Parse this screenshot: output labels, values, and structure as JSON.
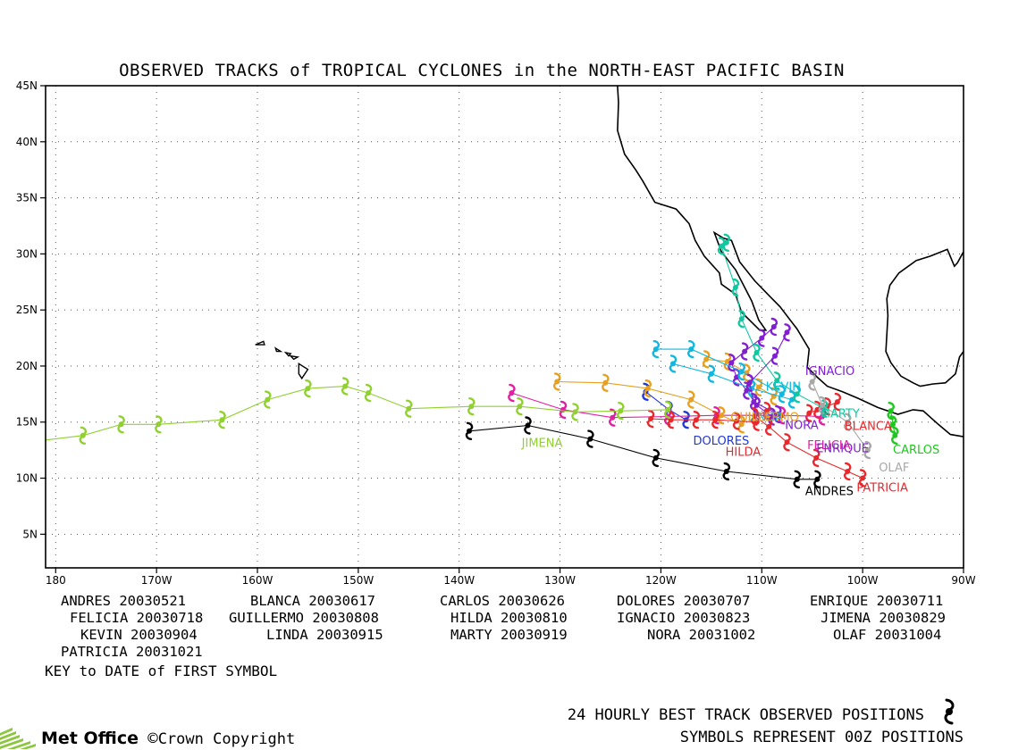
{
  "title": "OBSERVED TRACKS of TROPICAL CYCLONES in the NORTH-EAST PACIFIC BASIN",
  "axes": {
    "lon_ticks": [
      "180",
      "170W",
      "160W",
      "150W",
      "140W",
      "130W",
      "120W",
      "110W",
      "100W",
      "90W"
    ],
    "lat_ticks": [
      "5N",
      "10N",
      "15N",
      "20N",
      "25N",
      "30N",
      "35N",
      "40N",
      "45N"
    ],
    "lon_range": [
      -181,
      -90
    ],
    "lat_range": [
      2,
      45
    ],
    "grid": "dotted"
  },
  "storms": [
    {
      "name": "ANDRES",
      "date": "20030521",
      "color": "#000000",
      "track": [
        [
          -139,
          14.2
        ],
        [
          -133.2,
          14.7
        ],
        [
          -127,
          13.5
        ],
        [
          -120.5,
          11.8
        ],
        [
          -113.5,
          10.6
        ],
        [
          -106.5,
          9.9
        ],
        [
          -104.5,
          9.9
        ]
      ]
    },
    {
      "name": "BLANCA",
      "date": "20030617",
      "color": "#e8282c",
      "track": [
        [
          -102.5,
          16.8
        ],
        [
          -103.5,
          16.4
        ],
        [
          -104.5,
          16.1
        ],
        [
          -105.3,
          15.8
        ]
      ]
    },
    {
      "name": "CARLOS",
      "date": "20030626",
      "color": "#1cc81c",
      "track": [
        [
          -97.2,
          16.0
        ],
        [
          -97.0,
          14.8
        ],
        [
          -96.8,
          13.8
        ]
      ]
    },
    {
      "name": "DOLORES",
      "date": "20030707",
      "color": "#2038d8",
      "track": [
        [
          -121.5,
          17.7
        ],
        [
          -119.2,
          16.1
        ],
        [
          -117.5,
          15.2
        ]
      ]
    },
    {
      "name": "ENRIQUE",
      "date": "20030711",
      "color": "#e8a020",
      "track": [
        [
          -115.5,
          20.6
        ],
        [
          -113.4,
          20.4
        ],
        [
          -111.5,
          19.4
        ],
        [
          -110.3,
          18.1
        ],
        [
          -108.8,
          17.3
        ]
      ]
    },
    {
      "name": "FELICIA",
      "date": "20030718",
      "color": "#e020a0",
      "track": [
        [
          -134.8,
          17.6
        ],
        [
          -129.7,
          16.1
        ],
        [
          -124.8,
          15.4
        ],
        [
          -119.3,
          15.5
        ],
        [
          -114.5,
          15.6
        ],
        [
          -108,
          15.6
        ],
        [
          -104,
          15.5
        ]
      ]
    },
    {
      "name": "GUILLERMO",
      "date": "20030808",
      "color": "#e8a020",
      "track": [
        [
          -130.3,
          18.6
        ],
        [
          -125.5,
          18.5
        ],
        [
          -121.3,
          18.0
        ],
        [
          -117.0,
          17.0
        ],
        [
          -114.0,
          15.6
        ],
        [
          -112,
          14.8
        ]
      ]
    },
    {
      "name": "HILDA",
      "date": "20030810",
      "color": "#e8282c",
      "track": [
        [
          -110.5,
          15.0
        ],
        [
          -112.5,
          15.1
        ],
        [
          -114.6,
          15.2
        ],
        [
          -116.5,
          15.2
        ],
        [
          -119.0,
          15.2
        ],
        [
          -121,
          15.3
        ]
      ]
    },
    {
      "name": "IGNACIO",
      "date": "20030823",
      "color": "#8020d0",
      "track": [
        [
          -108.8,
          23.5
        ],
        [
          -110.0,
          22.5
        ],
        [
          -111.7,
          21.3
        ],
        [
          -113.0,
          20.3
        ],
        [
          -112.5,
          19.0
        ],
        [
          -111.5,
          17.8
        ],
        [
          -110.5,
          16.5
        ],
        [
          -109.0,
          15.5
        ]
      ]
    },
    {
      "name": "JIMENA",
      "date": "20030829",
      "color": "#90d030",
      "track": [
        [
          -119.3,
          16.1
        ],
        [
          -124.0,
          16.0
        ],
        [
          -128.5,
          15.9
        ],
        [
          -134.0,
          16.4
        ],
        [
          -138.8,
          16.4
        ],
        [
          -145.0,
          16.2
        ],
        [
          -149,
          17.6
        ],
        [
          -151.3,
          18.2
        ],
        [
          -155.0,
          18.0
        ],
        [
          -159.0,
          17.0
        ],
        [
          -163.5,
          15.2
        ],
        [
          -169.8,
          14.8
        ],
        [
          -173.5,
          14.8
        ],
        [
          -177.3,
          13.8
        ],
        [
          -181,
          13.4
        ]
      ]
    },
    {
      "name": "KEVIN",
      "date": "20030904",
      "color": "#10b8e0",
      "track": [
        [
          -108.0,
          17.5
        ],
        [
          -112.0,
          19.5
        ],
        [
          -117.0,
          21.5
        ],
        [
          -120.5,
          21.5
        ]
      ]
    },
    {
      "name": "LINDA",
      "date": "20030915",
      "color": "#10b8e0",
      "track": [
        [
          -107.0,
          17.0
        ],
        [
          -111.0,
          18.0
        ],
        [
          -115.0,
          19.3
        ],
        [
          -118.8,
          20.2
        ]
      ]
    },
    {
      "name": "MARTY",
      "date": "20030919",
      "color": "#10c8a0",
      "track": [
        [
          -103.8,
          16.2
        ],
        [
          -106.5,
          17.5
        ],
        [
          -108.5,
          18.7
        ],
        [
          -110.5,
          21.2
        ],
        [
          -112.0,
          24.2
        ],
        [
          -112.6,
          27.0
        ],
        [
          -114.0,
          30.7
        ],
        [
          -113.5,
          31.0
        ]
      ]
    },
    {
      "name": "NORA",
      "date": "20031002",
      "color": "#8020d0",
      "track": [
        [
          -108.4,
          15.7
        ],
        [
          -110.8,
          16.8
        ],
        [
          -111.2,
          18.5
        ],
        [
          -108.7,
          20.9
        ],
        [
          -107.5,
          23.0
        ]
      ]
    },
    {
      "name": "OLAF",
      "date": "20031004",
      "color": "#a8a8a8",
      "track": [
        [
          -105.0,
          18.6
        ],
        [
          -104.0,
          16.5
        ],
        [
          -101.5,
          15.0
        ],
        [
          -99.5,
          12.5
        ]
      ]
    },
    {
      "name": "PATRICIA",
      "date": "20031021",
      "color": "#e8282c",
      "track": [
        [
          -109.5,
          16.0
        ],
        [
          -110.7,
          15.5
        ],
        [
          -109.3,
          14.6
        ],
        [
          -107.5,
          13.2
        ],
        [
          -104.6,
          11.8
        ],
        [
          -101.5,
          10.6
        ],
        [
          -100,
          10.0
        ]
      ]
    }
  ],
  "storm_labels": [
    {
      "text": "ANDRES",
      "lon": -105.7,
      "lat": 8.5,
      "color": "#000000"
    },
    {
      "text": "PATRICIA",
      "lon": -100.6,
      "lat": 8.8,
      "color": "#e8282c"
    },
    {
      "text": "OLAF",
      "lon": -98.4,
      "lat": 10.6,
      "color": "#a8a8a8"
    },
    {
      "text": "CARLOS",
      "lon": -97,
      "lat": 12.2,
      "color": "#1cc81c"
    },
    {
      "text": "BLANCA",
      "lon": -101.8,
      "lat": 14.3,
      "color": "#e8282c"
    },
    {
      "text": "IGNACIO",
      "lon": -105.7,
      "lat": 19.2,
      "color": "#8020d0"
    },
    {
      "text": "KEVIN",
      "lon": -109.6,
      "lat": 17.8,
      "color": "#10b8e0"
    },
    {
      "text": "NORA",
      "lon": -107.7,
      "lat": 14.4,
      "color": "#8020d0"
    },
    {
      "text": "FELICIA",
      "lon": -105.5,
      "lat": 12.6,
      "color": "#e020a0"
    },
    {
      "text": "ENRIQUE",
      "lon": -104.6,
      "lat": 12.3,
      "color": "#8020d0"
    },
    {
      "text": "MARTY",
      "lon": -104.2,
      "lat": 15.4,
      "color": "#10c8a0"
    },
    {
      "text": "LINDA",
      "lon": -111.4,
      "lat": 15.1,
      "color": "#10b8e0"
    },
    {
      "text": "GUILLERMO",
      "lon": -113.1,
      "lat": 15.1,
      "color": "#e8a020"
    },
    {
      "text": "DOLORES",
      "lon": -116.8,
      "lat": 13.0,
      "color": "#2038d8"
    },
    {
      "text": "HILDA",
      "lon": -113.6,
      "lat": 12.0,
      "color": "#e8282c"
    },
    {
      "text": "JIMENA",
      "lon": -133.8,
      "lat": 12.8,
      "color": "#90d030"
    }
  ],
  "key_caption": "KEY to DATE of FIRST SYMBOL",
  "footer": {
    "line1": "24 HOURLY BEST TRACK OBSERVED POSITIONS",
    "line2": "SYMBOLS REPRESENT 00Z POSITIONS",
    "logo": "Met Office",
    "copyright": "Crown Copyright"
  },
  "coastlines": {
    "north_america": [
      [
        -124.5,
        48
      ],
      [
        -124.2,
        43.5
      ],
      [
        -124.3,
        41
      ],
      [
        -123.6,
        38.9
      ],
      [
        -122.5,
        37.5
      ],
      [
        -121.8,
        36.5
      ],
      [
        -120.6,
        34.6
      ],
      [
        -118.5,
        34
      ],
      [
        -117.2,
        32.7
      ],
      [
        -116.6,
        31.2
      ],
      [
        -115.7,
        29.8
      ],
      [
        -114.2,
        28.3
      ],
      [
        -114.0,
        27.3
      ],
      [
        -112.6,
        26.4
      ],
      [
        -112.0,
        24.8
      ],
      [
        -110.2,
        23.2
      ],
      [
        -109.6,
        23.2
      ],
      [
        -110.3,
        24.1
      ],
      [
        -111.0,
        25.8
      ],
      [
        -112.6,
        28.6
      ],
      [
        -114.0,
        30.2
      ],
      [
        -114.7,
        31.9
      ],
      [
        -113.8,
        31.4
      ],
      [
        -113.0,
        31.2
      ],
      [
        -112.2,
        29.3
      ],
      [
        -110.7,
        27.6
      ],
      [
        -109.3,
        26.3
      ],
      [
        -108.2,
        25.3
      ],
      [
        -106.5,
        23.3
      ],
      [
        -105.3,
        21.5
      ],
      [
        -105.5,
        19.9
      ],
      [
        -104.5,
        19.0
      ],
      [
        -103.5,
        18.2
      ],
      [
        -102.0,
        17.7
      ],
      [
        -100.4,
        17.1
      ],
      [
        -98.5,
        16.3
      ],
      [
        -96.5,
        15.7
      ],
      [
        -95.0,
        16.1
      ],
      [
        -94.0,
        16.0
      ],
      [
        -92.5,
        14.8
      ],
      [
        -91.3,
        13.9
      ],
      [
        -90,
        13.7
      ]
    ],
    "gulf": [
      [
        -90,
        30.2
      ],
      [
        -90.6,
        29.2
      ],
      [
        -90.9,
        28.9
      ],
      [
        -91.6,
        30.4
      ],
      [
        -93.3,
        29.8
      ],
      [
        -94.7,
        29.4
      ],
      [
        -96.4,
        28.3
      ],
      [
        -97.3,
        27.2
      ],
      [
        -97.6,
        26
      ],
      [
        -97.5,
        24.5
      ],
      [
        -97.6,
        22.8
      ],
      [
        -97.7,
        21.3
      ],
      [
        -97.2,
        20.3
      ],
      [
        -96.2,
        19.1
      ],
      [
        -95.0,
        18.5
      ],
      [
        -94.3,
        18.2
      ],
      [
        -93.0,
        18.4
      ],
      [
        -91.8,
        18.5
      ],
      [
        -90.8,
        19.3
      ],
      [
        -90.4,
        20.8
      ],
      [
        -90,
        21.3
      ]
    ],
    "hawaii": [
      [
        [
          -160.2,
          21.9
        ],
        [
          -159.4,
          22.2
        ],
        [
          -159.3,
          21.9
        ],
        [
          -160.2,
          21.9
        ]
      ],
      [
        [
          -158.2,
          21.6
        ],
        [
          -157.7,
          21.3
        ],
        [
          -158.1,
          21.3
        ],
        [
          -158.2,
          21.6
        ]
      ],
      [
        [
          -157.2,
          21.2
        ],
        [
          -156.7,
          21.1
        ],
        [
          -156.9,
          20.9
        ],
        [
          -157.2,
          21.2
        ]
      ],
      [
        [
          -156.7,
          20.9
        ],
        [
          -156.0,
          20.8
        ],
        [
          -156.4,
          20.6
        ],
        [
          -156.7,
          20.9
        ]
      ],
      [
        [
          -155.9,
          20.2
        ],
        [
          -155.0,
          19.7
        ],
        [
          -155.6,
          18.9
        ],
        [
          -155.9,
          19.3
        ],
        [
          -155.9,
          20.2
        ]
      ]
    ]
  }
}
